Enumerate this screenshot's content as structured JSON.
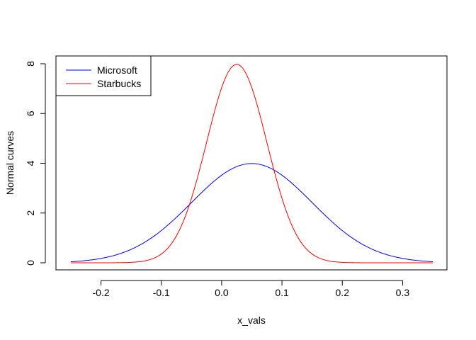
{
  "chart_data": {
    "type": "line",
    "xlabel": "x_vals",
    "ylabel": "Normal curves",
    "xlim": [
      -0.25,
      0.35
    ],
    "ylim": [
      0,
      8
    ],
    "x_ticks": [
      -0.2,
      -0.1,
      0.0,
      0.1,
      0.2,
      0.3
    ],
    "x_tick_labels": [
      "-0.2",
      "-0.1",
      "0.0",
      "0.1",
      "0.2",
      "0.3"
    ],
    "y_ticks": [
      0,
      2,
      4,
      6,
      8
    ],
    "y_tick_labels": [
      "0",
      "2",
      "4",
      "6",
      "8"
    ],
    "grid": false,
    "legend_position": "top-left",
    "series": [
      {
        "name": "Microsoft",
        "color": "#0000ff",
        "mean": 0.05,
        "sd": 0.1,
        "x": [
          -0.25,
          -0.2,
          -0.15,
          -0.1,
          -0.05,
          0.0,
          0.05,
          0.1,
          0.15,
          0.2,
          0.25,
          0.3,
          0.35
        ],
        "y": [
          0.04,
          0.18,
          0.54,
          1.3,
          2.42,
          3.52,
          3.99,
          3.52,
          2.42,
          1.3,
          0.54,
          0.18,
          0.04
        ]
      },
      {
        "name": "Starbucks",
        "color": "#ff0000",
        "mean": 0.025,
        "sd": 0.05,
        "x": [
          -0.25,
          -0.2,
          -0.15,
          -0.1,
          -0.05,
          0.0,
          0.025,
          0.05,
          0.1,
          0.15,
          0.2,
          0.25,
          0.3,
          0.35
        ],
        "y": [
          0.0,
          0.0,
          0.01,
          0.35,
          2.59,
          7.04,
          7.98,
          7.04,
          2.59,
          0.35,
          0.01,
          0.0,
          0.0,
          0.0
        ]
      }
    ]
  }
}
